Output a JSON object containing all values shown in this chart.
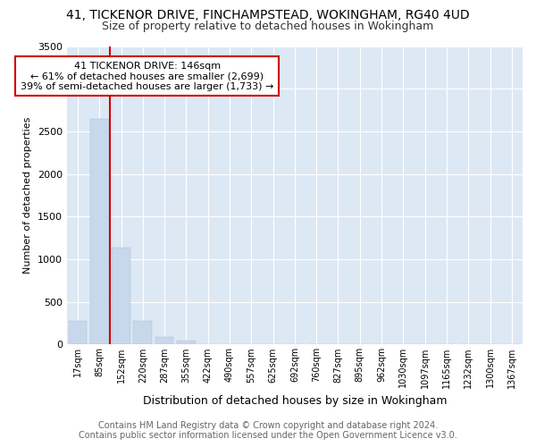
{
  "title": "41, TICKENOR DRIVE, FINCHAMPSTEAD, WOKINGHAM, RG40 4UD",
  "subtitle": "Size of property relative to detached houses in Wokingham",
  "xlabel": "Distribution of detached houses by size in Wokingham",
  "ylabel": "Number of detached properties",
  "footer_line1": "Contains HM Land Registry data © Crown copyright and database right 2024.",
  "footer_line2": "Contains public sector information licensed under the Open Government Licence v3.0.",
  "annotation_line1": "41 TICKENOR DRIVE: 146sqm",
  "annotation_line2": "← 61% of detached houses are smaller (2,699)",
  "annotation_line3": "39% of semi-detached houses are larger (1,733) →",
  "bar_categories": [
    "17sqm",
    "85sqm",
    "152sqm",
    "220sqm",
    "287sqm",
    "355sqm",
    "422sqm",
    "490sqm",
    "557sqm",
    "625sqm",
    "692sqm",
    "760sqm",
    "827sqm",
    "895sqm",
    "962sqm",
    "1030sqm",
    "1097sqm",
    "1165sqm",
    "1232sqm",
    "1300sqm",
    "1367sqm"
  ],
  "bar_values": [
    275,
    2650,
    1140,
    275,
    85,
    50,
    5,
    0,
    0,
    0,
    0,
    0,
    0,
    0,
    0,
    0,
    0,
    0,
    0,
    0,
    0
  ],
  "bar_color": "#c8d8ec",
  "marker_color": "#cc0000",
  "marker_bin_index": 2,
  "ylim": [
    0,
    3500
  ],
  "yticks": [
    0,
    500,
    1000,
    1500,
    2000,
    2500,
    3000,
    3500
  ],
  "annotation_box_color": "#cc0000",
  "background_color": "#ffffff",
  "plot_bg_color": "#dde8f5",
  "grid_color": "#ffffff",
  "title_fontsize": 10,
  "subtitle_fontsize": 9,
  "axis_fontsize": 8,
  "tick_fontsize": 7,
  "footer_fontsize": 7
}
